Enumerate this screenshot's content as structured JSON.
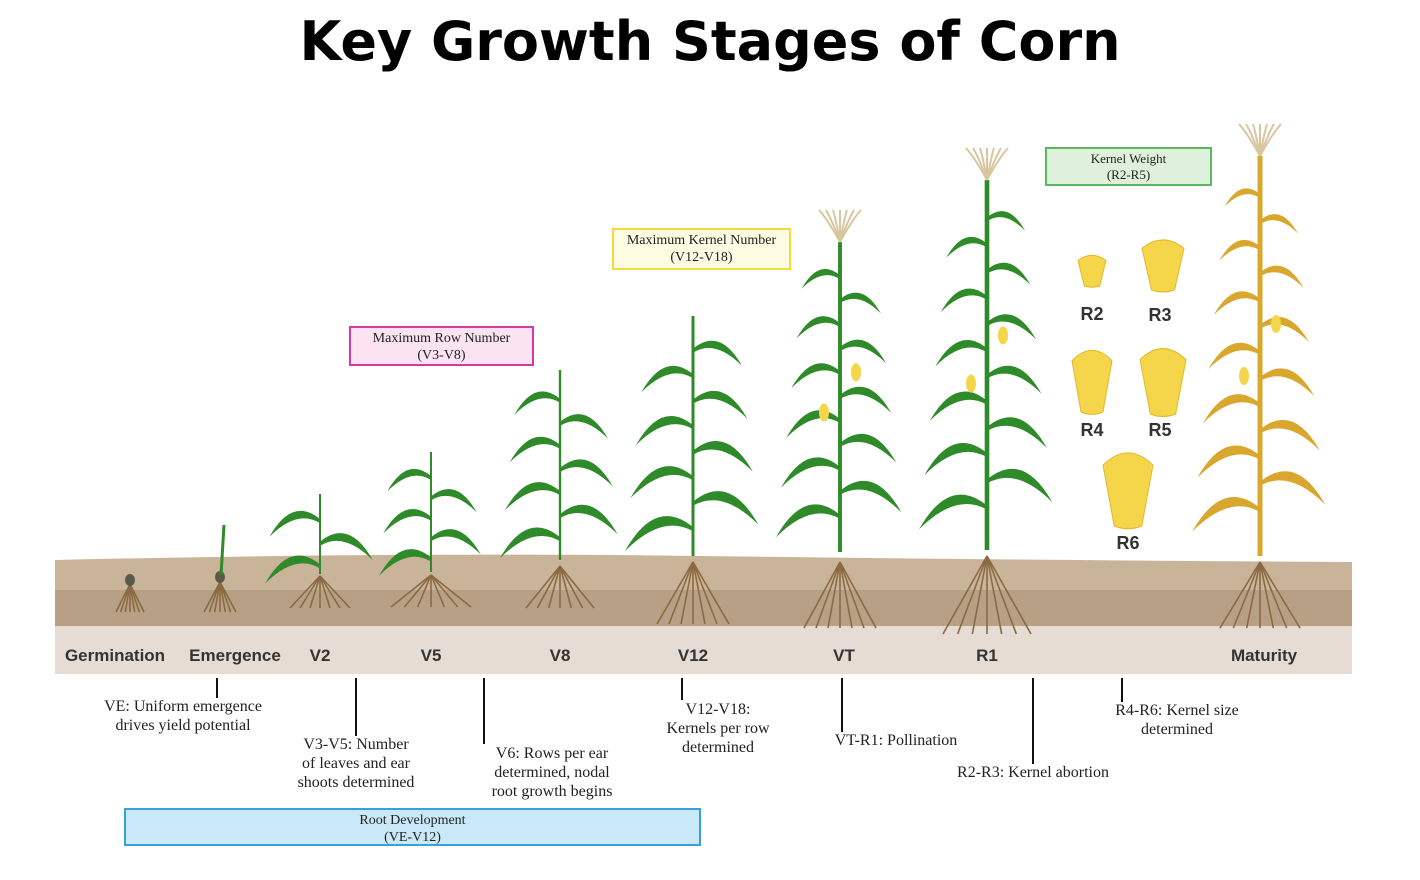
{
  "title": "Key Growth Stages of Corn",
  "stages": [
    "Germination",
    "Emergence",
    "V2",
    "V5",
    "V8",
    "V12",
    "VT",
    "R1",
    "Maturity"
  ],
  "kernels": [
    "R2",
    "R3",
    "R4",
    "R5",
    "R6"
  ],
  "boxes": {
    "row_number": {
      "line1": "Maximum Row Number",
      "line2": "(V3-V8)",
      "border": "#d63aa0",
      "fill": "#fbe3f1"
    },
    "kernel_number": {
      "line1": "Maximum Kernel Number",
      "line2": "(V12-V18)",
      "border": "#f2dc3a",
      "fill": "#fdfbe2"
    },
    "kernel_weight": {
      "line1": "Kernel Weight",
      "line2": "(R2-R5)",
      "border": "#5cb85c",
      "fill": "#dff0dc"
    },
    "root_dev": {
      "line1": "Root Development",
      "line2": "(VE-V12)",
      "border": "#3aa0d8",
      "fill": "#c9e9f8"
    }
  },
  "notes": {
    "ve": {
      "line1": "VE: Uniform emergence",
      "line2": "drives yield potential"
    },
    "v3v5": {
      "line1": "V3-V5: Number",
      "line2": "of leaves and ear",
      "line3": "shoots determined"
    },
    "v6": {
      "line1": "V6: Rows per ear",
      "line2": "determined, nodal",
      "line3": "root growth begins"
    },
    "v12v18": {
      "line1": "V12-V18:",
      "line2": "Kernels per row",
      "line3": "determined"
    },
    "vtr1": {
      "line1": "VT-R1: Pollination"
    },
    "r2r3": {
      "line1": "R2-R3: Kernel abortion"
    },
    "r4r6": {
      "line1": "R4-R6: Kernel size",
      "line2": "determined"
    }
  },
  "colors": {
    "soil_top": "#c9b49a",
    "soil_mid": "#b7a085",
    "soil_bottom": "#e6dcd3",
    "leaf_green": "#2f8a2a",
    "leaf_mature": "#d9a72e",
    "root": "#8a6a42",
    "kernel": "#f5d64a",
    "tassel": "#d9c6a0"
  }
}
